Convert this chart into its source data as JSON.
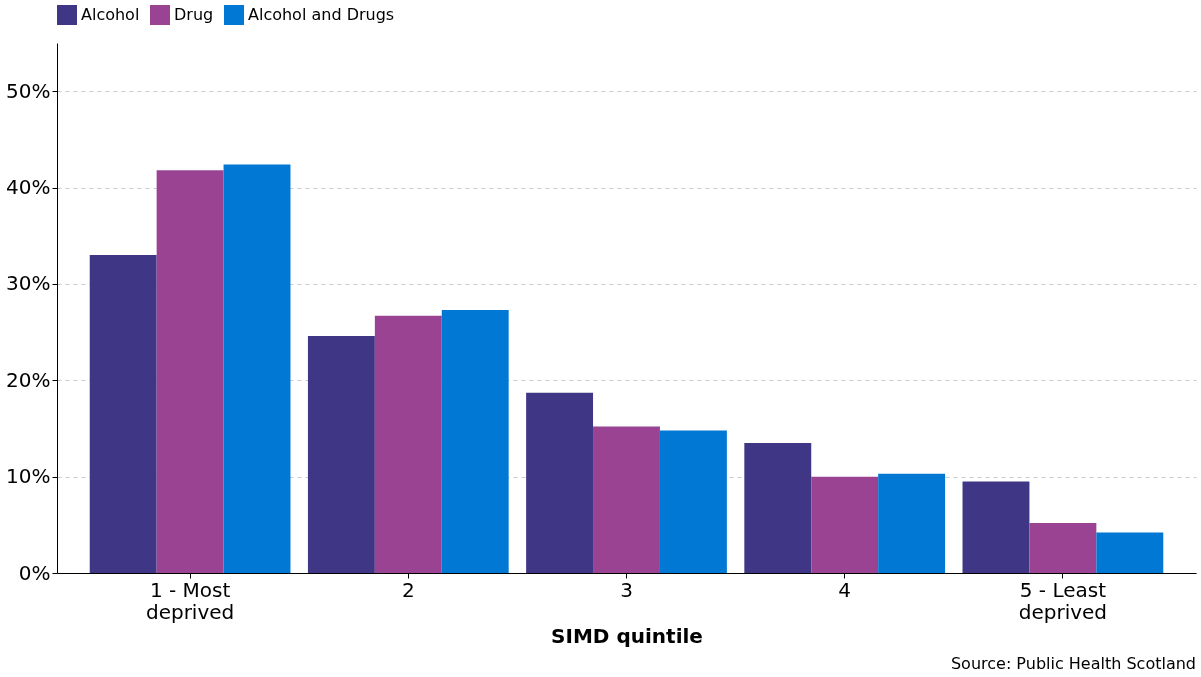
{
  "chart_data": {
    "type": "bar",
    "xlabel": "SIMD quintile",
    "categories": [
      "1 - Most deprived",
      "2",
      "3",
      "4",
      "5 - Least deprived"
    ],
    "series": [
      {
        "name": "Alcohol",
        "color": "#3f3685",
        "values": [
          33.0,
          24.6,
          18.7,
          13.5,
          9.5
        ]
      },
      {
        "name": "Drug",
        "color": "#9b4393",
        "values": [
          41.8,
          26.7,
          15.2,
          10.0,
          5.2
        ]
      },
      {
        "name": "Alcohol and Drugs",
        "color": "#0078d4",
        "values": [
          42.4,
          27.3,
          14.8,
          10.3,
          4.2
        ]
      }
    ],
    "ylim": [
      0,
      55
    ],
    "yticks": [
      {
        "value": 0,
        "label": "0%"
      },
      {
        "value": 10,
        "label": "10%"
      },
      {
        "value": 20,
        "label": "20%"
      },
      {
        "value": 30,
        "label": "30%"
      },
      {
        "value": 40,
        "label": "40%"
      },
      {
        "value": 50,
        "label": "50%"
      }
    ],
    "grid": "y",
    "legend": "top",
    "annotations": [
      "Source: Public Health Scotland"
    ]
  }
}
